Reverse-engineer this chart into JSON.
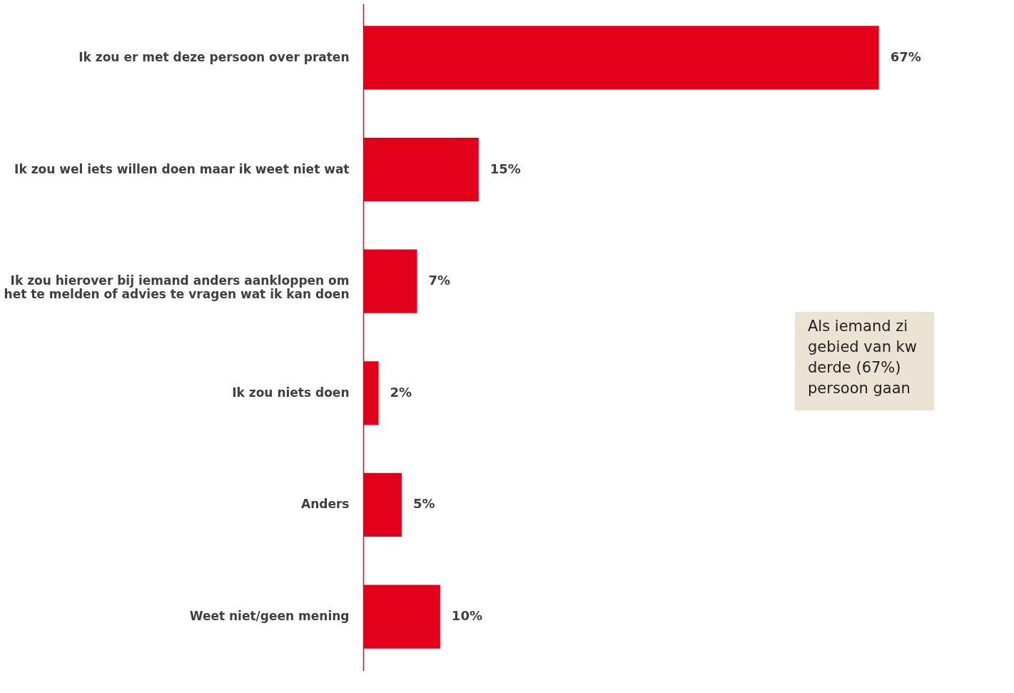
{
  "chart_data": {
    "type": "bar",
    "orientation": "horizontal",
    "categories": [
      "Ik zou er met deze persoon over praten",
      "Ik zou wel iets willen doen maar ik weet niet wat",
      "Ik zou hierover bij iemand anders aankloppen om het te melden of advies te vragen wat ik kan doen",
      "Ik zou niets doen",
      "Anders",
      "Weet niet/geen mening"
    ],
    "values": [
      67,
      15,
      7,
      2,
      5,
      10
    ],
    "value_labels": [
      "67%",
      "15%",
      "7%",
      "2%",
      "5%",
      "10%"
    ],
    "color": "#e2001a",
    "annotations": [
      "Als iemand zi\ngebied van kw\nderde (67%)\npersoon gaan"
    ]
  }
}
